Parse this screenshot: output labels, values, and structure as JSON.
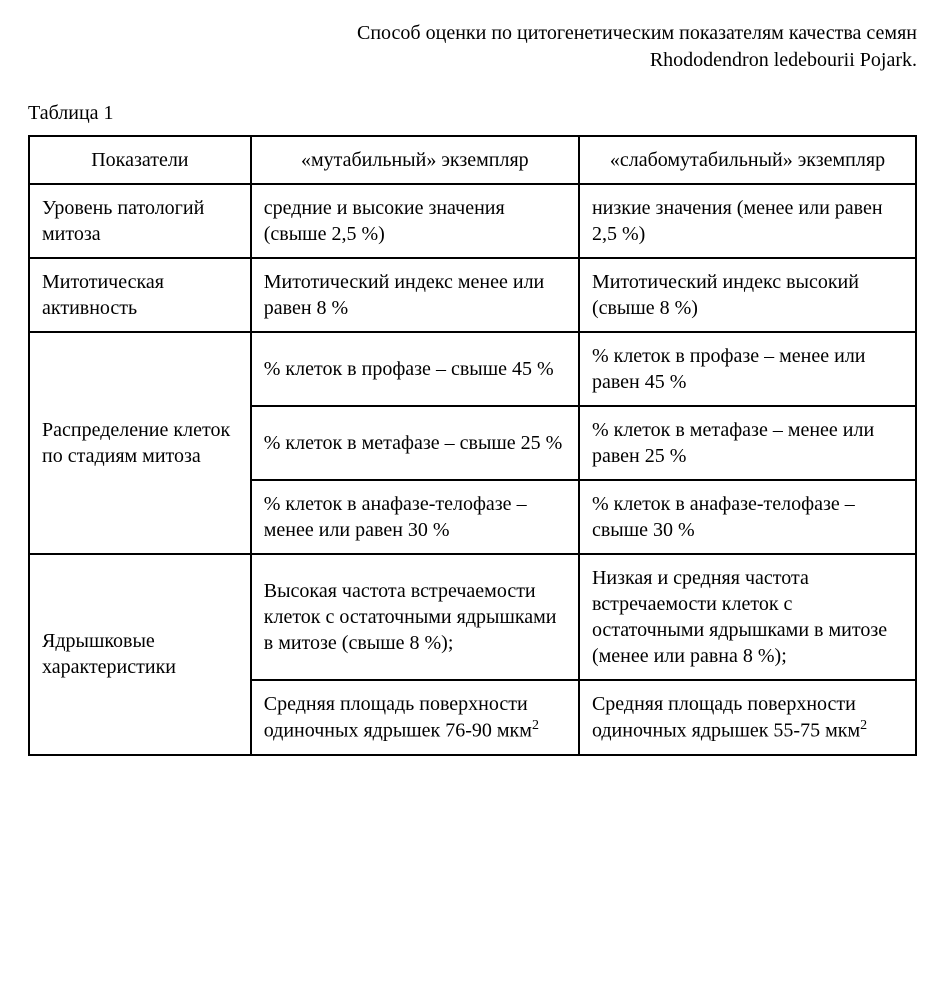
{
  "header": {
    "line1": "Способ оценки по цитогенетическим показателям качества семян",
    "line2": "Rhododendron ledebourii Pojark."
  },
  "table_label": "Таблица 1",
  "table": {
    "columns": [
      "Показатели",
      "«мутабильный» экземпляр",
      "«слабомутабильный» экземпляр"
    ],
    "groups": [
      {
        "indicator": "Уровень патологий митоза",
        "rows": [
          {
            "mutable": "средние и высокие значения (свыше 2,5 %)",
            "low": "низкие значения (менее или равен 2,5 %)"
          }
        ]
      },
      {
        "indicator": "Митотическая активность",
        "rows": [
          {
            "mutable": "Митотический индекс менее или равен 8 %",
            "low": "Митотический индекс высокий (свыше 8 %)"
          }
        ]
      },
      {
        "indicator": "Распределение клеток по стадиям митоза",
        "rows": [
          {
            "mutable": "% клеток в профазе – свыше 45 %",
            "low": "% клеток в профазе – менее или равен 45 %"
          },
          {
            "mutable": " % клеток в метафазе – свыше 25 %",
            "low": "% клеток в метафазе – менее или равен 25 %"
          },
          {
            "mutable": "% клеток в анафазе-телофазе – менее или равен 30 %",
            "low": "% клеток в анафазе-телофазе – свыше 30 %"
          }
        ]
      },
      {
        "indicator": "Ядрышковые характеристики",
        "rows": [
          {
            "mutable": "Высокая частота встречаемости клеток с остаточными ядрышками в митозе (свыше 8 %);",
            "low": "Низкая и средняя частота встречаемости клеток с остаточными ядрышками в митозе (менее или равна 8 %);"
          },
          {
            "mutable_html": " Средняя площадь поверхности одиночных ядрышек 76-90 мкм<sup>2</sup>",
            "low_html": "Средняя площадь поверхности одиночных ядрышек 55-75 мкм<sup>2</sup>"
          }
        ]
      }
    ]
  }
}
